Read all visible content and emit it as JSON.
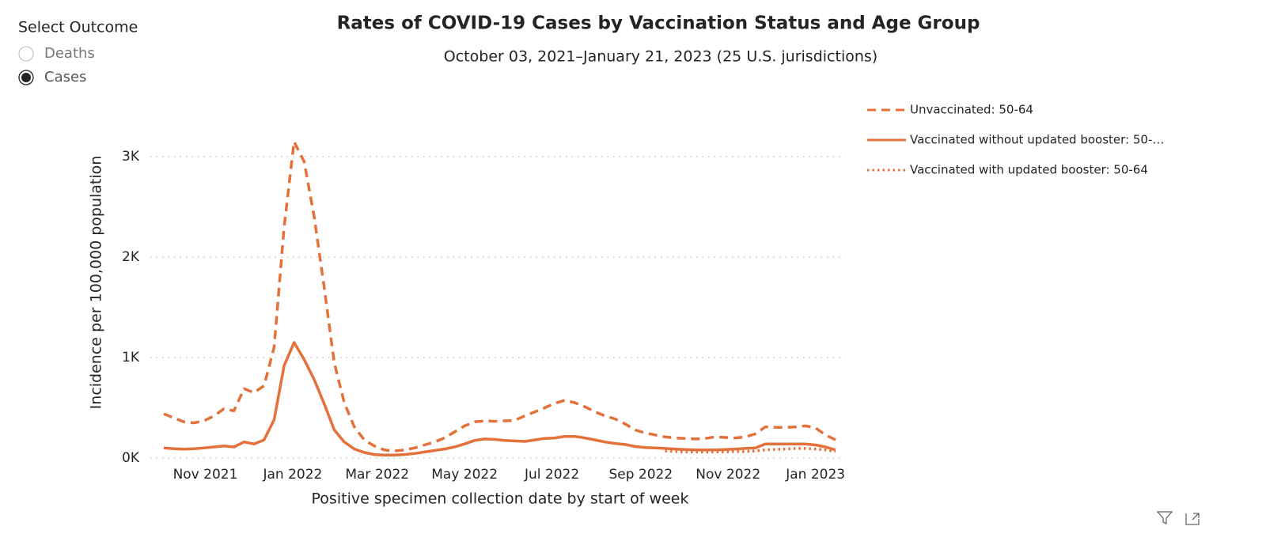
{
  "outcome_selector": {
    "title": "Select Outcome",
    "options": [
      "Deaths",
      "Cases"
    ],
    "selected": "Cases"
  },
  "chart_data": {
    "type": "line",
    "title": "Rates of COVID-19 Cases by Vaccination Status and Age Group",
    "subtitle": "October 03, 2021–January 21, 2023 (25 U.S. jurisdictions)",
    "x_label": "Positive specimen collection date by start of week",
    "y_label": "Incidence per 100,000 population",
    "x": [
      "2021-10-03",
      "2021-10-10",
      "2021-10-17",
      "2021-10-24",
      "2021-10-31",
      "2021-11-07",
      "2021-11-14",
      "2021-11-21",
      "2021-11-28",
      "2021-12-05",
      "2021-12-12",
      "2021-12-19",
      "2021-12-26",
      "2022-01-02",
      "2022-01-09",
      "2022-01-16",
      "2022-01-23",
      "2022-01-30",
      "2022-02-06",
      "2022-02-13",
      "2022-02-20",
      "2022-02-27",
      "2022-03-06",
      "2022-03-13",
      "2022-03-20",
      "2022-03-27",
      "2022-04-03",
      "2022-04-10",
      "2022-04-17",
      "2022-04-24",
      "2022-05-01",
      "2022-05-08",
      "2022-05-15",
      "2022-05-22",
      "2022-05-29",
      "2022-06-05",
      "2022-06-12",
      "2022-06-19",
      "2022-06-26",
      "2022-07-03",
      "2022-07-10",
      "2022-07-17",
      "2022-07-24",
      "2022-07-31",
      "2022-08-07",
      "2022-08-14",
      "2022-08-21",
      "2022-08-28",
      "2022-09-04",
      "2022-09-11",
      "2022-09-18",
      "2022-09-25",
      "2022-10-02",
      "2022-10-09",
      "2022-10-16",
      "2022-10-23",
      "2022-10-30",
      "2022-11-06",
      "2022-11-13",
      "2022-11-20",
      "2022-11-27",
      "2022-12-04",
      "2022-12-11",
      "2022-12-18",
      "2022-12-25",
      "2023-01-01",
      "2023-01-08",
      "2023-01-15"
    ],
    "xlim": [
      "2021-10-03",
      "2023-01-15"
    ],
    "xticks": [
      {
        "value": "2021-11-01",
        "label": "Nov 2021"
      },
      {
        "value": "2022-01-01",
        "label": "Jan 2022"
      },
      {
        "value": "2022-03-01",
        "label": "Mar 2022"
      },
      {
        "value": "2022-05-01",
        "label": "May 2022"
      },
      {
        "value": "2022-07-01",
        "label": "Jul 2022"
      },
      {
        "value": "2022-09-01",
        "label": "Sep 2022"
      },
      {
        "value": "2022-11-01",
        "label": "Nov 2022"
      },
      {
        "value": "2023-01-01",
        "label": "Jan 2023"
      }
    ],
    "ylim": [
      0,
      3200
    ],
    "yticks": [
      {
        "value": 0,
        "label": "0K"
      },
      {
        "value": 1000,
        "label": "1K"
      },
      {
        "value": 2000,
        "label": "2K"
      },
      {
        "value": 3000,
        "label": "3K"
      }
    ],
    "grid": true,
    "series": [
      {
        "name": "Unvaccinated: 50-64",
        "color": "#e4703a",
        "style": "dashed",
        "values": [
          440,
          400,
          360,
          350,
          370,
          420,
          490,
          470,
          690,
          650,
          720,
          1100,
          2300,
          3150,
          2950,
          2400,
          1700,
          950,
          550,
          310,
          180,
          120,
          80,
          70,
          80,
          100,
          130,
          160,
          200,
          260,
          320,
          360,
          370,
          365,
          370,
          375,
          420,
          460,
          500,
          545,
          575,
          550,
          510,
          460,
          420,
          390,
          340,
          280,
          250,
          230,
          210,
          200,
          195,
          190,
          195,
          210,
          205,
          200,
          210,
          240,
          310,
          305,
          305,
          310,
          320,
          300,
          230,
          180
        ]
      },
      {
        "name": "Vaccinated without updated booster: 50-…",
        "color": "#e4703a",
        "style": "solid",
        "values": [
          100,
          92,
          88,
          92,
          100,
          110,
          120,
          110,
          160,
          140,
          180,
          380,
          920,
          1150,
          980,
          780,
          540,
          280,
          160,
          90,
          55,
          35,
          30,
          30,
          35,
          45,
          60,
          75,
          90,
          110,
          140,
          175,
          190,
          185,
          175,
          170,
          165,
          180,
          195,
          200,
          215,
          215,
          200,
          180,
          160,
          145,
          135,
          115,
          105,
          100,
          95,
          90,
          85,
          80,
          80,
          80,
          85,
          90,
          95,
          100,
          140,
          140,
          140,
          140,
          140,
          130,
          110,
          80
        ]
      },
      {
        "name": "Vaccinated with updated booster: 50-64",
        "color": "#e4703a",
        "style": "dotted",
        "values": [
          null,
          null,
          null,
          null,
          null,
          null,
          null,
          null,
          null,
          null,
          null,
          null,
          null,
          null,
          null,
          null,
          null,
          null,
          null,
          null,
          null,
          null,
          null,
          null,
          null,
          null,
          null,
          null,
          null,
          null,
          null,
          null,
          null,
          null,
          null,
          null,
          null,
          null,
          null,
          null,
          null,
          null,
          null,
          null,
          null,
          null,
          null,
          null,
          null,
          null,
          70,
          65,
          60,
          60,
          60,
          60,
          60,
          65,
          65,
          70,
          80,
          85,
          90,
          95,
          95,
          90,
          80,
          65
        ]
      }
    ]
  }
}
